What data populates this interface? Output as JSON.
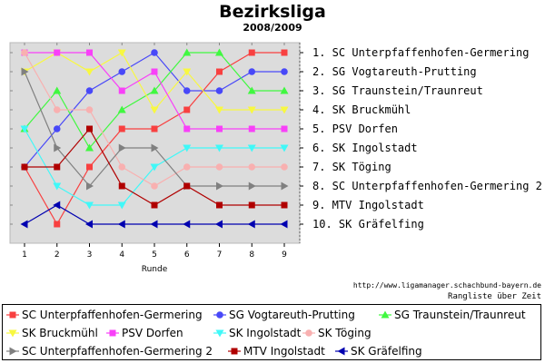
{
  "chart_data": {
    "type": "line",
    "title": "Bezirksliga",
    "subtitle": "2008/2009",
    "xlabel": "Runde",
    "ylabel": "",
    "x": [
      1,
      2,
      3,
      4,
      5,
      6,
      7,
      8,
      9
    ],
    "ylim": [
      1,
      10
    ],
    "y_inverted": true,
    "grid": false,
    "legend_position": "bottom",
    "rank_labels": [
      "1.  SC Unterpfaffenhofen-Germering",
      "2.  SG Vogtareuth-Prutting",
      "3.  SG Traunstein/Traunreut",
      "4.  SK Bruckmühl",
      "5.  PSV Dorfen",
      "6.  SK Ingolstadt",
      "7.  SK Töging",
      "8.  SC Unterpfaffenhofen-Germering 2",
      "9.  MTV Ingolstadt",
      "10. SK Gräfelfing"
    ],
    "series": [
      {
        "name": "SC Unterpfaffenhofen-Germering",
        "color": "#f84040",
        "marker": "square",
        "values": [
          7,
          10,
          7,
          5,
          5,
          4,
          2,
          1,
          1
        ]
      },
      {
        "name": "SG Vogtareuth-Prutting",
        "color": "#4848f8",
        "marker": "circle",
        "values": [
          7,
          5,
          3,
          2,
          1,
          3,
          3,
          2,
          2
        ]
      },
      {
        "name": "SG Traunstein/Traunreut",
        "color": "#40f840",
        "marker": "triangle-up",
        "values": [
          5,
          3,
          6,
          4,
          3,
          1,
          1,
          3,
          3
        ]
      },
      {
        "name": "SK Bruckmühl",
        "color": "#f8f840",
        "marker": "triangle-down",
        "values": [
          2,
          1,
          2,
          1,
          4,
          2,
          4,
          4,
          4
        ]
      },
      {
        "name": "PSV Dorfen",
        "color": "#f840f8",
        "marker": "square",
        "values": [
          1,
          1,
          1,
          3,
          2,
          5,
          5,
          5,
          5
        ]
      },
      {
        "name": "SK Ingolstadt",
        "color": "#40f8f8",
        "marker": "triangle-down",
        "values": [
          5,
          8,
          9,
          9,
          7,
          6,
          6,
          6,
          6
        ]
      },
      {
        "name": "SK Töging",
        "color": "#f8b0b0",
        "marker": "circle",
        "values": [
          1,
          4,
          4,
          7,
          8,
          7,
          7,
          7,
          7
        ]
      },
      {
        "name": "SC Unterpfaffenhofen-Germering 2",
        "color": "#808080",
        "marker": "triangle-right",
        "values": [
          2,
          6,
          8,
          6,
          6,
          8,
          8,
          8,
          8
        ]
      },
      {
        "name": "MTV Ingolstadt",
        "color": "#b00000",
        "marker": "square",
        "values": [
          7,
          7,
          5,
          8,
          9,
          8,
          9,
          9,
          9
        ]
      },
      {
        "name": "SK Gräfelfing",
        "color": "#0000b0",
        "marker": "triangle-left",
        "values": [
          10,
          9,
          10,
          10,
          10,
          10,
          10,
          10,
          10
        ]
      }
    ]
  },
  "credit": "http://www.ligamanager.schachbund-bayern.de",
  "footnote": "Rangliste über Zeit"
}
